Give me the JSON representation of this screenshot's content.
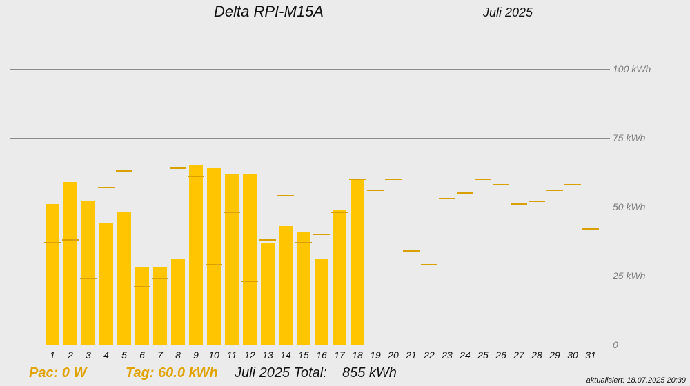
{
  "header": {
    "title": "Delta RPI-M15A",
    "month": "Juli 2025"
  },
  "footer": {
    "pac": "Pac: 0 W",
    "tag": "Tag: 60.0 kWh",
    "total_label": "Juli 2025 Total:",
    "total_value": "855 kWh",
    "updated": "aktualisiert: 18.07.2025 20:39"
  },
  "colors": {
    "bar": "#ffc600",
    "reference": "#d9a000",
    "grid": "#8c8c8c",
    "background": "#ebebeb"
  },
  "chart_data": {
    "type": "bar",
    "title": "Delta RPI-M15A",
    "subtitle": "Juli 2025",
    "categories": [
      "1",
      "2",
      "3",
      "4",
      "5",
      "6",
      "7",
      "8",
      "9",
      "10",
      "11",
      "12",
      "13",
      "14",
      "15",
      "16",
      "17",
      "18",
      "19",
      "20",
      "21",
      "22",
      "23",
      "24",
      "25",
      "26",
      "27",
      "28",
      "29",
      "30",
      "31"
    ],
    "series": [
      {
        "values": [
          51,
          59,
          52,
          44,
          48,
          28,
          28,
          31,
          65,
          64,
          62,
          62,
          37,
          43,
          41,
          31,
          49,
          60,
          null,
          null,
          null,
          null,
          null,
          null,
          null,
          null,
          null,
          null,
          null,
          null,
          null
        ]
      },
      {
        "values": [
          37,
          38,
          24,
          57,
          63,
          21,
          24,
          64,
          61,
          29,
          48,
          23,
          38,
          54,
          37,
          40,
          48,
          60,
          56,
          60,
          34,
          29,
          53,
          55,
          60,
          58,
          51,
          52,
          56,
          58,
          42
        ]
      }
    ],
    "ylim": [
      0,
      100
    ],
    "yticks": [
      0,
      25,
      50,
      75,
      100
    ],
    "ytick_labels": [
      "0",
      "25 kWh",
      "50 kWh",
      "75 kWh",
      "100 kWh"
    ],
    "grid": true
  }
}
